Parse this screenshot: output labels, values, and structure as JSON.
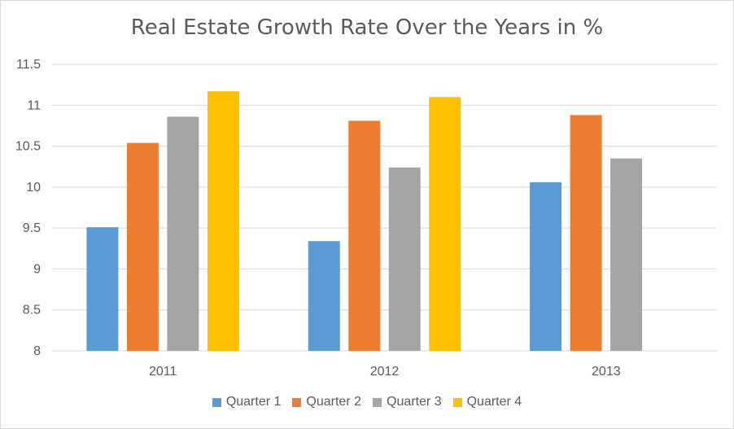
{
  "chart_data": {
    "type": "bar",
    "title": "Real Estate Growth Rate Over the Years in %",
    "xlabel": "",
    "ylabel": "",
    "categories": [
      "2011",
      "2012",
      "2013"
    ],
    "series": [
      {
        "name": "Quarter 1",
        "color": "#5b9bd5",
        "values": [
          9.51,
          9.34,
          10.06
        ]
      },
      {
        "name": "Quarter 2",
        "color": "#ed7d31",
        "values": [
          10.54,
          10.81,
          10.88
        ]
      },
      {
        "name": "Quarter 3",
        "color": "#a5a5a5",
        "values": [
          10.86,
          10.24,
          10.35
        ]
      },
      {
        "name": "Quarter 4",
        "color": "#ffc000",
        "values": [
          11.17,
          11.1,
          null
        ]
      }
    ],
    "ylim": [
      8,
      11.5
    ],
    "yticks": [
      "8",
      "8.5",
      "9",
      "9.5",
      "10",
      "10.5",
      "11",
      "11.5"
    ],
    "grid": true,
    "legend_position": "bottom"
  }
}
